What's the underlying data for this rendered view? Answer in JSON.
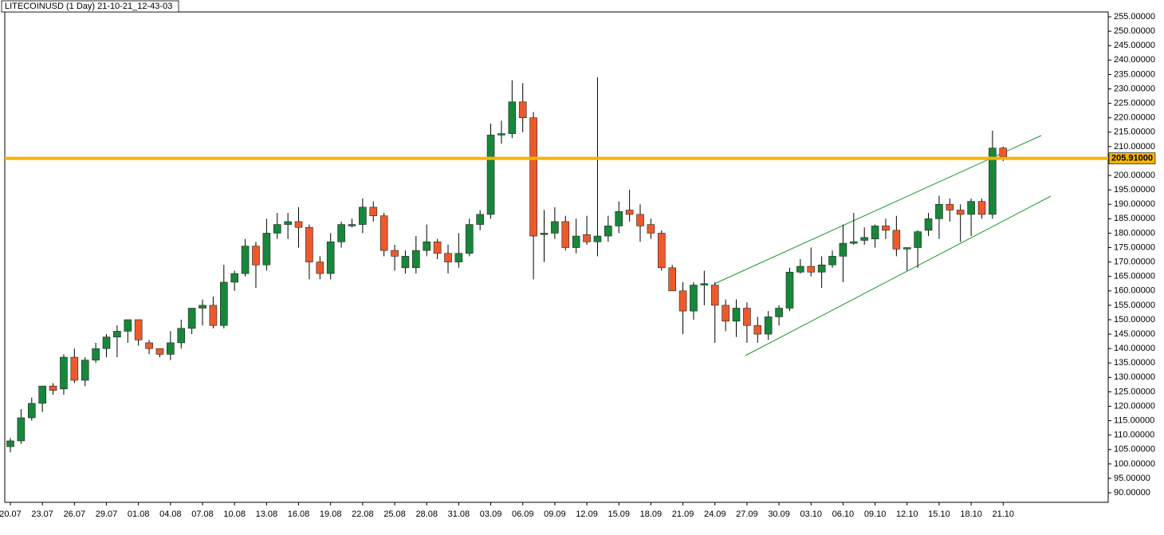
{
  "chart_data": {
    "type": "candlestick",
    "title": "LITECOINUSD (1 Day) 21-10-21_12-43-03",
    "categories": [
      "20.07",
      null,
      null,
      "23.07",
      null,
      null,
      "26.07",
      null,
      null,
      "29.07",
      null,
      null,
      "01.08",
      null,
      null,
      "04.08",
      null,
      null,
      "07.08",
      null,
      null,
      "10.08",
      null,
      null,
      "13.08",
      null,
      null,
      "16.08",
      null,
      null,
      "19.08",
      null,
      null,
      "22.08",
      null,
      null,
      "25.08",
      null,
      null,
      "28.08",
      null,
      null,
      "31.08",
      null,
      null,
      "03.09",
      null,
      null,
      "06.09",
      null,
      null,
      "09.09",
      null,
      null,
      "12.09",
      null,
      null,
      "15.09",
      null,
      null,
      "18.09",
      null,
      null,
      "21.09",
      null,
      null,
      "24.09",
      null,
      null,
      "27.09",
      null,
      null,
      "30.09",
      null,
      null,
      "03.10",
      null,
      null,
      "06.10",
      null,
      null,
      "09.10",
      null,
      null,
      "12.10",
      null,
      null,
      "15.10",
      null,
      null,
      "18.10",
      null,
      null,
      "21.10"
    ],
    "open": [
      106,
      108,
      116,
      121,
      127,
      126,
      137,
      129,
      136,
      140,
      144,
      146,
      150,
      142,
      140,
      138,
      142,
      147,
      154,
      155,
      148,
      163,
      166,
      175.5,
      169,
      180,
      183,
      184,
      182,
      170,
      166,
      177,
      182.5,
      183,
      189,
      186,
      174,
      168,
      168,
      174,
      177,
      173,
      170,
      173,
      183,
      186.5,
      214,
      214.5,
      225.5,
      220,
      179.5,
      180,
      184,
      175,
      179.5,
      177,
      179,
      182.5,
      188,
      186.5,
      183,
      180,
      168,
      160,
      153,
      162,
      162,
      155,
      149.5,
      154,
      148,
      145,
      151,
      154,
      166.5,
      168.5,
      166.5,
      169,
      172,
      176.5,
      177.5,
      178,
      182.5,
      181,
      174.5,
      175,
      181,
      185,
      190,
      188,
      186.5,
      191,
      186.5,
      209.5
    ],
    "high": [
      109,
      119,
      123,
      127,
      128,
      138,
      140,
      137,
      142,
      145,
      148,
      150,
      150,
      143,
      140,
      146,
      150,
      154,
      157,
      158,
      169,
      167,
      178,
      177,
      185,
      187,
      187,
      189,
      183,
      172,
      180,
      184,
      185,
      192,
      191,
      187,
      176,
      174,
      179,
      183,
      178,
      176,
      180,
      185,
      188,
      218,
      219,
      233,
      232,
      222,
      188,
      189,
      186,
      185,
      186,
      234,
      186,
      191,
      195,
      190,
      185,
      181,
      169,
      163,
      163,
      167,
      163,
      157,
      157,
      156,
      151,
      153,
      155,
      168,
      171,
      175,
      172,
      174,
      183,
      187,
      182,
      183,
      185,
      186,
      175,
      181,
      187,
      193,
      192,
      190,
      192,
      192,
      215.5,
      210
    ],
    "low": [
      104,
      107,
      115,
      118,
      124,
      124,
      128,
      127,
      135,
      137,
      137,
      142,
      141,
      138,
      137,
      136,
      140,
      145,
      148,
      147,
      147,
      160,
      165,
      161,
      167,
      178,
      178,
      175,
      164,
      164,
      164,
      175,
      182,
      180,
      184,
      172,
      167,
      166,
      166,
      172,
      171,
      166,
      168,
      172,
      181,
      185,
      211,
      213,
      215,
      164,
      170,
      178,
      174,
      173,
      176,
      172,
      177,
      180,
      184,
      177,
      178,
      167,
      160,
      145,
      150,
      155,
      142,
      146,
      144,
      142,
      142,
      143,
      148,
      153,
      166,
      165,
      161,
      168,
      163,
      176,
      176,
      175,
      178,
      172,
      167,
      168,
      179,
      178,
      184,
      177,
      179,
      185,
      185,
      205
    ],
    "close": [
      108,
      116,
      121,
      127,
      125.5,
      137,
      129,
      136,
      140,
      144,
      146,
      150,
      143,
      140,
      138,
      142,
      147,
      154,
      155,
      148,
      163,
      166,
      175.5,
      169,
      180,
      183,
      184,
      182,
      170,
      166,
      177,
      183,
      183,
      189,
      186,
      174,
      172,
      172,
      174,
      177,
      173,
      170,
      173,
      183,
      186.5,
      214,
      214.5,
      225.5,
      220,
      179,
      180,
      184,
      175,
      179,
      177,
      179,
      182.5,
      187.5,
      186.5,
      182.5,
      180,
      168,
      160,
      153,
      162,
      162.5,
      155,
      149.5,
      154,
      148,
      145,
      151,
      154,
      166.5,
      168.5,
      166.5,
      169,
      172,
      176.5,
      177,
      178.5,
      182.5,
      181,
      174.5,
      175,
      180.5,
      185,
      190,
      188,
      186.5,
      191,
      186.5,
      209.5,
      206.5
    ],
    "up_color": "#17873a",
    "down_color": "#ec5a2c",
    "ylim": [
      86.7,
      256.4
    ],
    "yticks": [
      {
        "value": 90,
        "label": "90.00000"
      },
      {
        "value": 95,
        "label": "95.00000"
      },
      {
        "value": 100,
        "label": "100.00000"
      },
      {
        "value": 105,
        "label": "105.00000"
      },
      {
        "value": 110,
        "label": "110.00000"
      },
      {
        "value": 115,
        "label": "115.00000"
      },
      {
        "value": 120,
        "label": "120.00000"
      },
      {
        "value": 125,
        "label": "125.00000"
      },
      {
        "value": 130,
        "label": "130.00000"
      },
      {
        "value": 135,
        "label": "135.00000"
      },
      {
        "value": 140,
        "label": "140.00000"
      },
      {
        "value": 145,
        "label": "145.00000"
      },
      {
        "value": 150,
        "label": "150.00000"
      },
      {
        "value": 155,
        "label": "155.00000"
      },
      {
        "value": 160,
        "label": "160.00000"
      },
      {
        "value": 165,
        "label": "165.00000"
      },
      {
        "value": 170,
        "label": "170.00000"
      },
      {
        "value": 175,
        "label": "175.00000"
      },
      {
        "value": 180,
        "label": "180.00000"
      },
      {
        "value": 185,
        "label": "185.00000"
      },
      {
        "value": 190,
        "label": "190.00000"
      },
      {
        "value": 195,
        "label": "195.00000"
      },
      {
        "value": 200,
        "label": "200.00000"
      },
      {
        "value": 205,
        "label": "205.00000"
      },
      {
        "value": 210,
        "label": "210.00000"
      },
      {
        "value": 215,
        "label": "215.00000"
      },
      {
        "value": 220,
        "label": "220.00000"
      },
      {
        "value": 225,
        "label": "225.00000"
      },
      {
        "value": 230,
        "label": "230.00000"
      },
      {
        "value": 235,
        "label": "235.00000"
      },
      {
        "value": 240,
        "label": "240.00000"
      },
      {
        "value": 245,
        "label": "245.00000"
      },
      {
        "value": 250,
        "label": "250.00000"
      },
      {
        "value": 255,
        "label": "255.00000"
      }
    ],
    "hline": {
      "value": 205.91,
      "label": "205.91000",
      "color": "#f5b400"
    }
  }
}
